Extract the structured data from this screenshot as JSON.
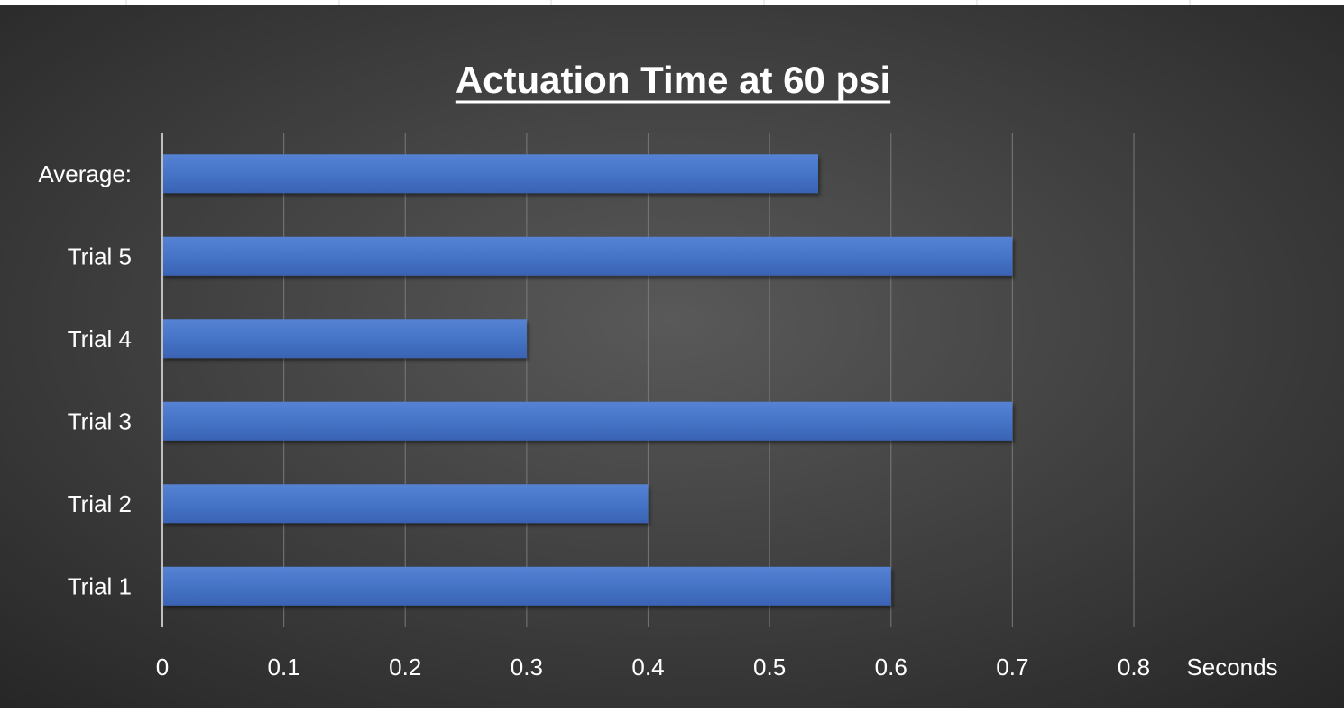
{
  "chart_data": {
    "type": "bar",
    "orientation": "horizontal",
    "title": "Actuation Time at 60 psi",
    "title_underlined": true,
    "xlabel": "Seconds",
    "ylabel": "",
    "categories": [
      "Average:",
      "Trial 5",
      "Trial 4",
      "Trial 3",
      "Trial 2",
      "Trial 1"
    ],
    "values": [
      0.54,
      0.7,
      0.3,
      0.7,
      0.4,
      0.6
    ],
    "xlim": [
      0,
      0.8
    ],
    "xticks": [
      0,
      0.1,
      0.2,
      0.3,
      0.4,
      0.5,
      0.6,
      0.7,
      0.8
    ],
    "xtick_labels": [
      "0",
      "0.1",
      "0.2",
      "0.3",
      "0.4",
      "0.5",
      "0.6",
      "0.7",
      "0.8"
    ],
    "grid": true,
    "legend": "none",
    "colors": {
      "bar": "#4472C4",
      "bar_light": "#5682d4",
      "bar_dark": "#3a63b4",
      "background_center": "#595959",
      "background_edge": "#262626",
      "text": "#ffffff",
      "grid": "#808080",
      "axis": "#bfbfbf"
    }
  }
}
